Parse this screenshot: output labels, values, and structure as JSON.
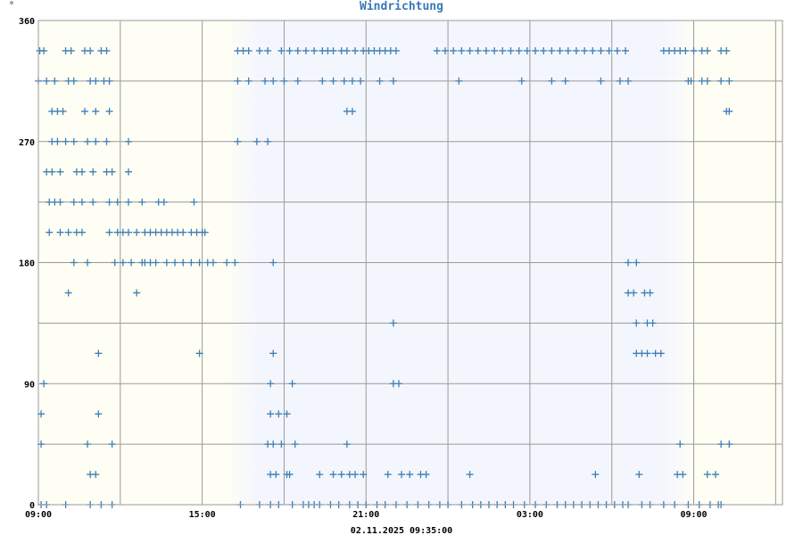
{
  "chart_data": {
    "type": "scatter",
    "title": "Windrichtung",
    "y_unit": "°",
    "footer": "02.11.2025 09:35:00",
    "x_range_hours": [
      9,
      36.25
    ],
    "ylim": [
      0,
      360
    ],
    "x_tick_labels": [
      {
        "h": 9,
        "label": "09:00"
      },
      {
        "h": 15,
        "label": "15:00"
      },
      {
        "h": 21,
        "label": "21:00"
      },
      {
        "h": 27,
        "label": "03:00"
      },
      {
        "h": 33,
        "label": "09:00"
      }
    ],
    "y_tick_labels": [
      0,
      90,
      180,
      270,
      360
    ],
    "grid": true,
    "night_span_hours": [
      16.5,
      32.5
    ],
    "colors": {
      "points": "#3f7fb5",
      "day_bg": "#fefef4",
      "night_bg": "#f4f6fd",
      "grid": "#9a9a9a",
      "title": "#3a78b8"
    },
    "series": [
      {
        "points": [
          [
            9.05,
            337.5
          ],
          [
            9.2,
            337.5
          ],
          [
            10.0,
            337.5
          ],
          [
            10.2,
            337.5
          ],
          [
            10.7,
            337.5
          ],
          [
            10.9,
            337.5
          ],
          [
            11.3,
            337.5
          ],
          [
            11.5,
            337.5
          ],
          [
            9.0,
            315
          ],
          [
            9.3,
            315
          ],
          [
            9.6,
            315
          ],
          [
            10.1,
            315
          ],
          [
            10.3,
            315
          ],
          [
            10.9,
            315
          ],
          [
            11.1,
            315
          ],
          [
            11.4,
            315
          ],
          [
            11.6,
            315
          ],
          [
            9.5,
            292.5
          ],
          [
            9.7,
            292.5
          ],
          [
            9.9,
            292.5
          ],
          [
            10.7,
            292.5
          ],
          [
            11.1,
            292.5
          ],
          [
            11.6,
            292.5
          ],
          [
            9.5,
            270
          ],
          [
            9.7,
            270
          ],
          [
            10.0,
            270
          ],
          [
            10.3,
            270
          ],
          [
            10.8,
            270
          ],
          [
            11.1,
            270
          ],
          [
            11.5,
            270
          ],
          [
            12.3,
            270
          ],
          [
            9.3,
            247.5
          ],
          [
            9.5,
            247.5
          ],
          [
            9.8,
            247.5
          ],
          [
            10.4,
            247.5
          ],
          [
            10.6,
            247.5
          ],
          [
            11.0,
            247.5
          ],
          [
            11.5,
            247.5
          ],
          [
            11.7,
            247.5
          ],
          [
            12.3,
            247.5
          ],
          [
            9.4,
            225
          ],
          [
            9.6,
            225
          ],
          [
            9.8,
            225
          ],
          [
            10.3,
            225
          ],
          [
            10.6,
            225
          ],
          [
            11.0,
            225
          ],
          [
            11.6,
            225
          ],
          [
            11.9,
            225
          ],
          [
            12.3,
            225
          ],
          [
            12.8,
            225
          ],
          [
            13.4,
            225
          ],
          [
            13.6,
            225
          ],
          [
            14.7,
            225
          ],
          [
            9.4,
            202.5
          ],
          [
            9.8,
            202.5
          ],
          [
            10.1,
            202.5
          ],
          [
            10.4,
            202.5
          ],
          [
            10.6,
            202.5
          ],
          [
            11.6,
            202.5
          ],
          [
            11.9,
            202.5
          ],
          [
            12.1,
            202.5
          ],
          [
            12.3,
            202.5
          ],
          [
            12.6,
            202.5
          ],
          [
            12.9,
            202.5
          ],
          [
            13.1,
            202.5
          ],
          [
            13.3,
            202.5
          ],
          [
            13.5,
            202.5
          ],
          [
            13.7,
            202.5
          ],
          [
            13.9,
            202.5
          ],
          [
            14.1,
            202.5
          ],
          [
            14.3,
            202.5
          ],
          [
            14.6,
            202.5
          ],
          [
            14.8,
            202.5
          ],
          [
            15.0,
            202.5
          ],
          [
            15.1,
            202.5
          ],
          [
            10.3,
            180
          ],
          [
            10.8,
            180
          ],
          [
            11.8,
            180
          ],
          [
            12.1,
            180
          ],
          [
            12.4,
            180
          ],
          [
            12.8,
            180
          ],
          [
            12.9,
            180
          ],
          [
            13.1,
            180
          ],
          [
            13.3,
            180
          ],
          [
            13.7,
            180
          ],
          [
            14.0,
            180
          ],
          [
            14.3,
            180
          ],
          [
            14.6,
            180
          ],
          [
            14.9,
            180
          ],
          [
            15.2,
            180
          ],
          [
            15.4,
            180
          ],
          [
            15.9,
            180
          ],
          [
            16.2,
            180
          ],
          [
            17.6,
            180
          ],
          [
            10.1,
            157.5
          ],
          [
            12.6,
            157.5
          ],
          [
            11.2,
            112.5
          ],
          [
            14.9,
            112.5
          ],
          [
            17.6,
            112.5
          ],
          [
            9.2,
            90
          ],
          [
            17.5,
            90
          ],
          [
            18.3,
            90
          ],
          [
            9.1,
            67.5
          ],
          [
            11.2,
            67.5
          ],
          [
            17.5,
            67.5
          ],
          [
            17.8,
            67.5
          ],
          [
            18.1,
            67.5
          ],
          [
            9.1,
            45
          ],
          [
            10.8,
            45
          ],
          [
            11.7,
            45
          ],
          [
            17.4,
            45
          ],
          [
            17.9,
            45
          ],
          [
            18.4,
            45
          ],
          [
            17.6,
            45
          ],
          [
            10.9,
            22.5
          ],
          [
            11.1,
            22.5
          ],
          [
            17.5,
            22.5
          ],
          [
            17.7,
            22.5
          ],
          [
            18.1,
            22.5
          ],
          [
            18.2,
            22.5
          ],
          [
            9.1,
            0
          ],
          [
            9.3,
            0
          ],
          [
            10.0,
            0
          ],
          [
            10.9,
            0
          ],
          [
            11.3,
            0
          ],
          [
            11.7,
            0
          ],
          [
            16.4,
            0
          ],
          [
            17.1,
            0
          ],
          [
            17.5,
            0
          ],
          [
            17.8,
            0
          ],
          [
            18.3,
            0
          ],
          [
            18.7,
            0
          ],
          [
            16.3,
            337.5
          ],
          [
            16.5,
            337.5
          ],
          [
            16.7,
            337.5
          ],
          [
            17.1,
            337.5
          ],
          [
            17.4,
            337.5
          ],
          [
            17.9,
            337.5
          ],
          [
            18.2,
            337.5
          ],
          [
            18.5,
            337.5
          ],
          [
            18.8,
            337.5
          ],
          [
            19.1,
            337.5
          ],
          [
            19.4,
            337.5
          ],
          [
            19.6,
            337.5
          ],
          [
            19.8,
            337.5
          ],
          [
            20.1,
            337.5
          ],
          [
            20.3,
            337.5
          ],
          [
            20.6,
            337.5
          ],
          [
            20.9,
            337.5
          ],
          [
            21.1,
            337.5
          ],
          [
            21.3,
            337.5
          ],
          [
            21.5,
            337.5
          ],
          [
            21.7,
            337.5
          ],
          [
            21.9,
            337.5
          ],
          [
            22.1,
            337.5
          ],
          [
            16.3,
            315
          ],
          [
            16.7,
            315
          ],
          [
            17.3,
            315
          ],
          [
            17.6,
            315
          ],
          [
            18.0,
            315
          ],
          [
            18.5,
            315
          ],
          [
            19.4,
            315
          ],
          [
            19.8,
            315
          ],
          [
            20.2,
            315
          ],
          [
            20.5,
            315
          ],
          [
            20.8,
            315
          ],
          [
            21.5,
            315
          ],
          [
            22.0,
            315
          ],
          [
            20.3,
            292.5
          ],
          [
            20.5,
            292.5
          ],
          [
            16.3,
            270
          ],
          [
            17.0,
            270
          ],
          [
            17.4,
            270
          ],
          [
            19.3,
            22.5
          ],
          [
            19.8,
            22.5
          ],
          [
            20.1,
            22.5
          ],
          [
            20.4,
            22.5
          ],
          [
            20.6,
            22.5
          ],
          [
            20.9,
            22.5
          ],
          [
            21.8,
            22.5
          ],
          [
            22.3,
            22.5
          ],
          [
            22.6,
            22.5
          ],
          [
            23.0,
            22.5
          ],
          [
            23.2,
            22.5
          ],
          [
            20.3,
            45
          ],
          [
            22.0,
            90
          ],
          [
            22.2,
            90
          ],
          [
            22.0,
            135
          ],
          [
            18.9,
            0
          ],
          [
            19.1,
            0
          ],
          [
            19.3,
            0
          ],
          [
            19.7,
            0
          ],
          [
            20.0,
            0
          ],
          [
            20.4,
            0
          ],
          [
            20.7,
            0
          ],
          [
            21.0,
            0
          ],
          [
            21.4,
            0
          ],
          [
            21.7,
            0
          ],
          [
            22.1,
            0
          ],
          [
            22.5,
            0
          ],
          [
            22.9,
            0
          ],
          [
            23.3,
            0
          ],
          [
            23.7,
            0
          ],
          [
            24.0,
            0
          ],
          [
            23.6,
            337.5
          ],
          [
            23.9,
            337.5
          ],
          [
            24.2,
            337.5
          ],
          [
            24.5,
            337.5
          ],
          [
            24.8,
            337.5
          ],
          [
            25.1,
            337.5
          ],
          [
            25.4,
            337.5
          ],
          [
            25.7,
            337.5
          ],
          [
            26.0,
            337.5
          ],
          [
            26.3,
            337.5
          ],
          [
            26.6,
            337.5
          ],
          [
            26.9,
            337.5
          ],
          [
            27.2,
            337.5
          ],
          [
            27.5,
            337.5
          ],
          [
            27.8,
            337.5
          ],
          [
            28.1,
            337.5
          ],
          [
            28.4,
            337.5
          ],
          [
            28.7,
            337.5
          ],
          [
            29.0,
            337.5
          ],
          [
            29.3,
            337.5
          ],
          [
            29.6,
            337.5
          ],
          [
            29.9,
            337.5
          ],
          [
            30.2,
            337.5
          ],
          [
            30.5,
            337.5
          ],
          [
            24.4,
            315
          ],
          [
            26.7,
            315
          ],
          [
            27.8,
            315
          ],
          [
            28.3,
            315
          ],
          [
            29.6,
            315
          ],
          [
            30.3,
            315
          ],
          [
            30.6,
            315
          ],
          [
            24.8,
            22.5
          ],
          [
            29.4,
            22.5
          ],
          [
            30.6,
            0
          ],
          [
            24.5,
            0
          ],
          [
            24.9,
            0
          ],
          [
            25.2,
            0
          ],
          [
            25.5,
            0
          ],
          [
            25.8,
            0
          ],
          [
            26.1,
            0
          ],
          [
            26.4,
            0
          ],
          [
            26.8,
            0
          ],
          [
            27.2,
            0
          ],
          [
            27.6,
            0
          ],
          [
            28.0,
            0
          ],
          [
            28.3,
            0
          ],
          [
            28.6,
            0
          ],
          [
            28.9,
            0
          ],
          [
            29.2,
            0
          ],
          [
            29.5,
            0
          ],
          [
            29.8,
            0
          ],
          [
            30.1,
            0
          ],
          [
            30.4,
            0
          ],
          [
            30.6,
            180
          ],
          [
            30.9,
            180
          ],
          [
            30.6,
            157.5
          ],
          [
            30.8,
            157.5
          ],
          [
            31.2,
            157.5
          ],
          [
            31.4,
            157.5
          ],
          [
            30.9,
            135
          ],
          [
            31.3,
            135
          ],
          [
            31.5,
            135
          ],
          [
            30.9,
            112.5
          ],
          [
            31.1,
            112.5
          ],
          [
            31.3,
            112.5
          ],
          [
            31.6,
            112.5
          ],
          [
            31.8,
            112.5
          ],
          [
            31.0,
            22.5
          ],
          [
            31.9,
            337.5
          ],
          [
            32.1,
            337.5
          ],
          [
            32.3,
            337.5
          ],
          [
            32.5,
            337.5
          ],
          [
            32.7,
            337.5
          ],
          [
            33.0,
            337.5
          ],
          [
            33.3,
            337.5
          ],
          [
            33.5,
            337.5
          ],
          [
            34.0,
            337.5
          ],
          [
            34.2,
            337.5
          ],
          [
            32.8,
            315
          ],
          [
            32.9,
            315
          ],
          [
            33.3,
            315
          ],
          [
            33.5,
            315
          ],
          [
            34.0,
            315
          ],
          [
            34.3,
            315
          ],
          [
            34.2,
            292.5
          ],
          [
            34.3,
            292.5
          ],
          [
            32.5,
            45
          ],
          [
            34.0,
            45
          ],
          [
            34.3,
            45
          ],
          [
            32.4,
            22.5
          ],
          [
            32.6,
            22.5
          ],
          [
            33.5,
            22.5
          ],
          [
            33.8,
            22.5
          ],
          [
            31.1,
            0
          ],
          [
            31.4,
            0
          ],
          [
            31.9,
            0
          ],
          [
            32.3,
            0
          ],
          [
            32.8,
            0
          ],
          [
            33.2,
            0
          ],
          [
            33.6,
            0
          ],
          [
            33.9,
            0
          ],
          [
            34.0,
            0
          ]
        ]
      }
    ]
  }
}
